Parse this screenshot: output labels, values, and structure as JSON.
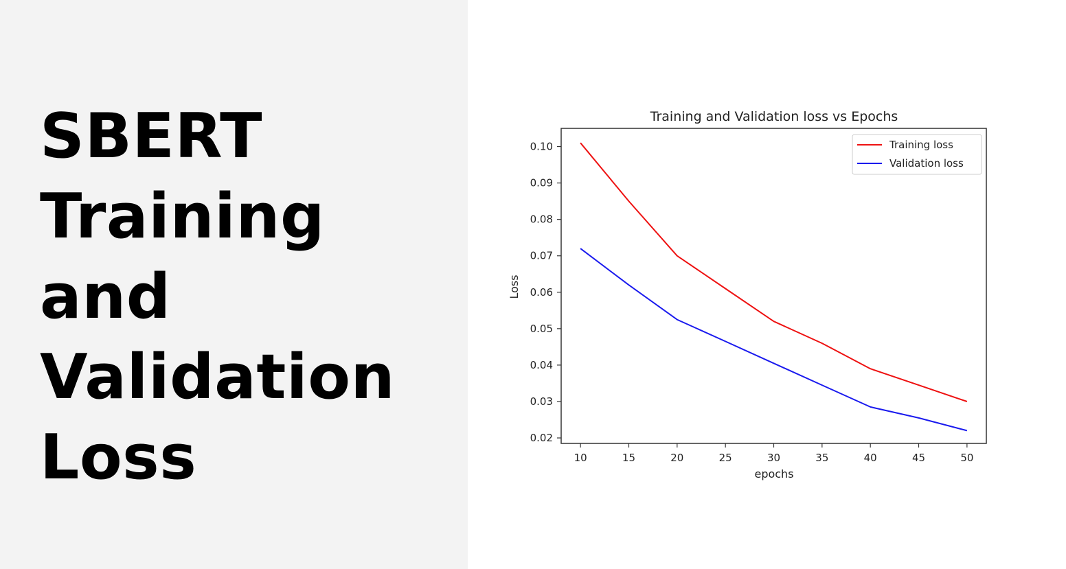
{
  "slide": {
    "heading_lines": [
      "SBERT",
      "Training",
      "and",
      "Validation",
      "Loss"
    ]
  },
  "chart_data": {
    "type": "line",
    "title": "Training and Validation loss vs Epochs",
    "xlabel": "epochs",
    "ylabel": "Loss",
    "xlim": [
      8,
      52
    ],
    "ylim": [
      0.0185,
      0.105
    ],
    "xticks": [
      10,
      15,
      20,
      25,
      30,
      35,
      40,
      45,
      50
    ],
    "yticks": [
      0.02,
      0.03,
      0.04,
      0.05,
      0.06,
      0.07,
      0.08,
      0.09,
      0.1
    ],
    "ytick_labels": [
      "0.02",
      "0.03",
      "0.04",
      "0.05",
      "0.06",
      "0.07",
      "0.08",
      "0.09",
      "0.10"
    ],
    "grid": false,
    "legend_position": "top-right",
    "x": [
      10,
      15,
      20,
      25,
      30,
      35,
      40,
      45,
      50
    ],
    "series": [
      {
        "name": "Training loss",
        "color": "#ee1111",
        "values": [
          0.101,
          0.085,
          0.07,
          0.061,
          0.052,
          0.046,
          0.039,
          0.0345,
          0.03
        ]
      },
      {
        "name": "Validation loss",
        "color": "#1a1aee",
        "values": [
          0.072,
          0.062,
          0.0525,
          0.0465,
          0.0405,
          0.0345,
          0.0285,
          0.0255,
          0.022
        ]
      }
    ]
  }
}
